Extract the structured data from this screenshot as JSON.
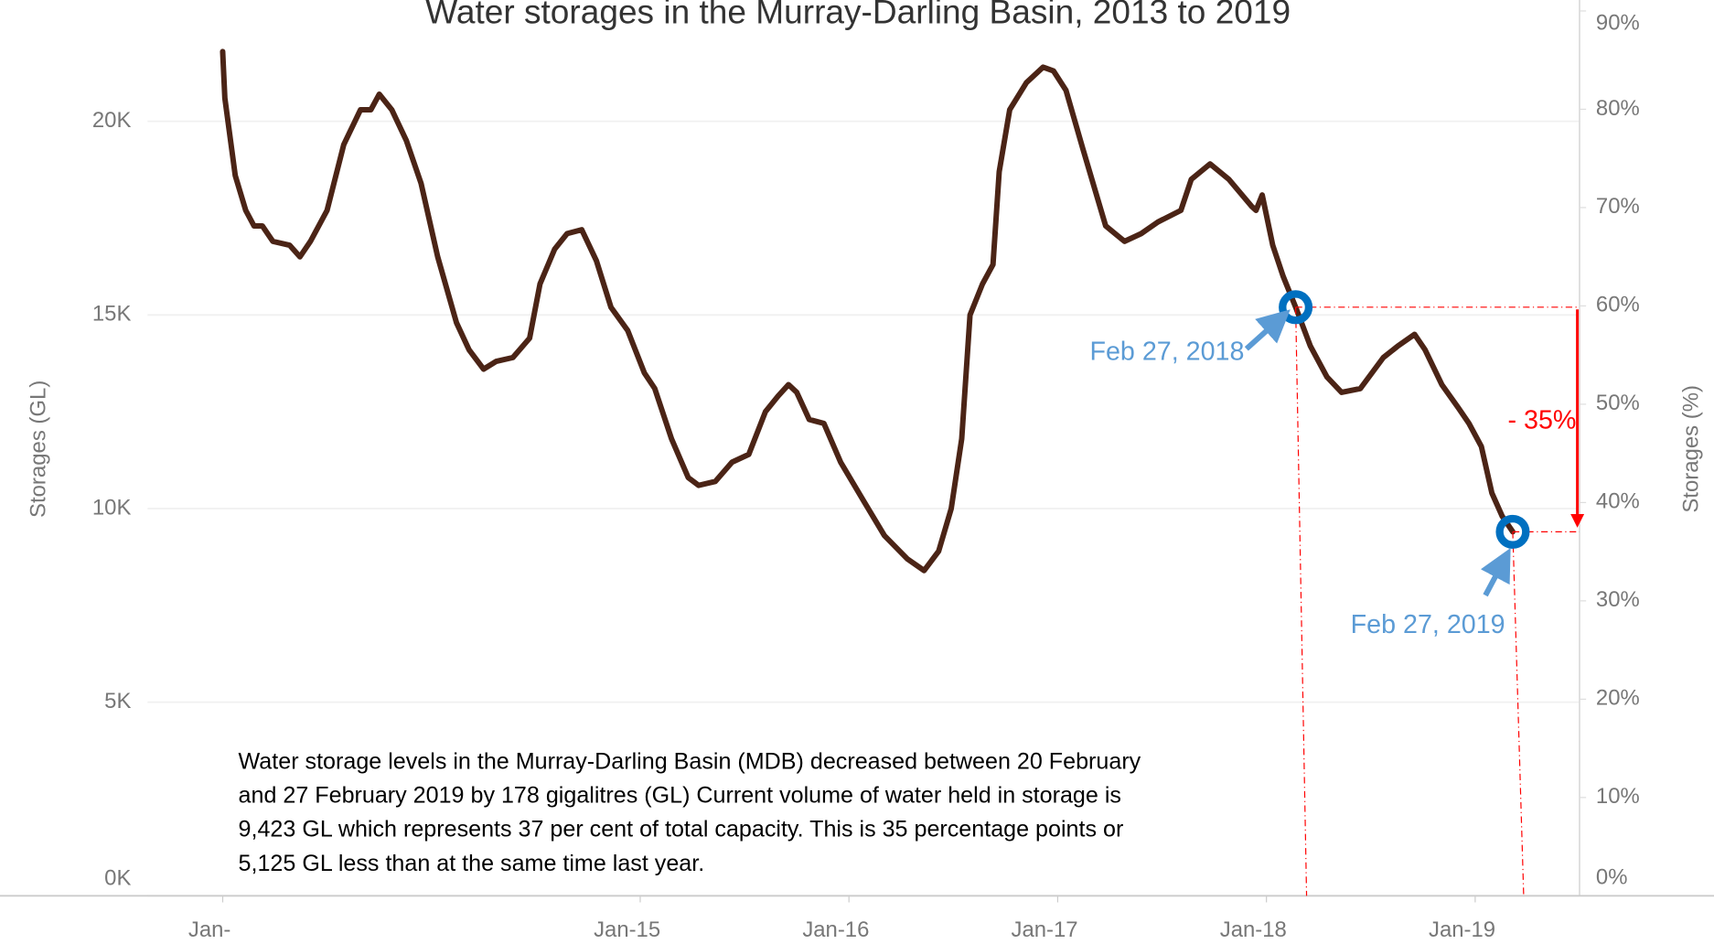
{
  "chart_data": {
    "type": "line",
    "title": "Water storages in the Murray-Darling Basin, 2013 to 2019",
    "y_label": "Storages (GL)",
    "y2_label": "Storages (%)",
    "x": [
      2013.0,
      2013.01,
      2013.06,
      2013.11,
      2013.15,
      2013.19,
      2013.24,
      2013.32,
      2013.37,
      2013.42,
      2013.5,
      2013.58,
      2013.66,
      2013.71,
      2013.75,
      2013.81,
      2013.88,
      2013.95,
      2014.03,
      2014.12,
      2014.18,
      2014.25,
      2014.31,
      2014.39,
      2014.47,
      2014.52,
      2014.59,
      2014.65,
      2014.72,
      2014.79,
      2014.86,
      2014.94,
      2015.02,
      2015.07,
      2015.15,
      2015.23,
      2015.28,
      2015.36,
      2015.44,
      2015.52,
      2015.6,
      2015.66,
      2015.71,
      2015.75,
      2015.81,
      2015.88,
      2015.96,
      2016.07,
      2016.17,
      2016.28,
      2016.36,
      2016.43,
      2016.49,
      2016.54,
      2016.58,
      2016.64,
      2016.69,
      2016.72,
      2016.77,
      2016.85,
      2016.93,
      2016.98,
      2017.04,
      2017.12,
      2017.23,
      2017.32,
      2017.4,
      2017.48,
      2017.59,
      2017.64,
      2017.73,
      2017.82,
      2017.93,
      2017.95,
      2017.98,
      2018.03,
      2018.08,
      2018.14,
      2018.21,
      2018.29,
      2018.36,
      2018.45,
      2018.56,
      2018.63,
      2018.71,
      2018.76,
      2018.84,
      2018.92,
      2018.97,
      2019.03,
      2019.08,
      2019.13,
      2019.18
    ],
    "series": [
      {
        "name": "Storages (GL)",
        "color": "#4b2416",
        "values": [
          21800,
          20600,
          18600,
          17700,
          17300,
          17300,
          16900,
          16800,
          16500,
          16900,
          17700,
          19400,
          20300,
          20300,
          20700,
          20300,
          19500,
          18400,
          16500,
          14800,
          14100,
          13600,
          13800,
          13900,
          14400,
          15800,
          16700,
          17100,
          17200,
          16400,
          15200,
          14600,
          13500,
          13100,
          11800,
          10800,
          10600,
          10700,
          11200,
          11400,
          12500,
          12900,
          13200,
          13000,
          12300,
          12200,
          11200,
          10200,
          9300,
          8700,
          8400,
          8900,
          10000,
          11800,
          15000,
          15800,
          16300,
          18700,
          20300,
          21000,
          21400,
          21300,
          20800,
          19300,
          17300,
          16900,
          17100,
          17400,
          17700,
          18500,
          18900,
          18500,
          17800,
          17700,
          18100,
          16800,
          16000,
          15200,
          14200,
          13400,
          13000,
          13100,
          13900,
          14200,
          14500,
          14100,
          13200,
          12600,
          12200,
          11600,
          10400,
          9800,
          9400
        ]
      }
    ],
    "xlim": [
      2012.64,
      2019.5
    ],
    "xticks": [
      {
        "value": 2013,
        "label": "Jan-"
      },
      {
        "value": 2015,
        "label": "Jan-15"
      },
      {
        "value": 2016,
        "label": "Jan-16"
      },
      {
        "value": 2017,
        "label": "Jan-17"
      },
      {
        "value": 2018,
        "label": "Jan-18"
      },
      {
        "value": 2019,
        "label": "Jan-19"
      }
    ],
    "ylim": [
      0,
      22850
    ],
    "yticks": [
      {
        "value": 0,
        "label": "0K"
      },
      {
        "value": 5000,
        "label": "5K"
      },
      {
        "value": 10000,
        "label": "10K"
      },
      {
        "value": 15000,
        "label": "15K"
      },
      {
        "value": 20000,
        "label": "20K"
      }
    ],
    "y2lim": [
      0,
      90
    ],
    "y2ticks": [
      {
        "value": 0,
        "label": "0%"
      },
      {
        "value": 10,
        "label": "10%"
      },
      {
        "value": 20,
        "label": "20%"
      },
      {
        "value": 30,
        "label": "30%"
      },
      {
        "value": 40,
        "label": "40%"
      },
      {
        "value": 50,
        "label": "50%"
      },
      {
        "value": 60,
        "label": "60%"
      },
      {
        "value": 70,
        "label": "70%"
      },
      {
        "value": 80,
        "label": "80%"
      },
      {
        "value": 90,
        "label": "90%"
      }
    ],
    "grid": true,
    "annotations": [
      "Feb 27, 2018",
      "Feb 27, 2019"
    ],
    "change_label": "- 35%",
    "note": "Water storage levels in the Murray-Darling Basin (MDB) decreased between 20 February and 27 February 2019 by 178 gigalitres (GL) Current volume of water held in storage is 9,423 GL which represents 37 per cent of total capacity. This is 35 percentage points or 5,125 GL less than at the same time last year."
  }
}
